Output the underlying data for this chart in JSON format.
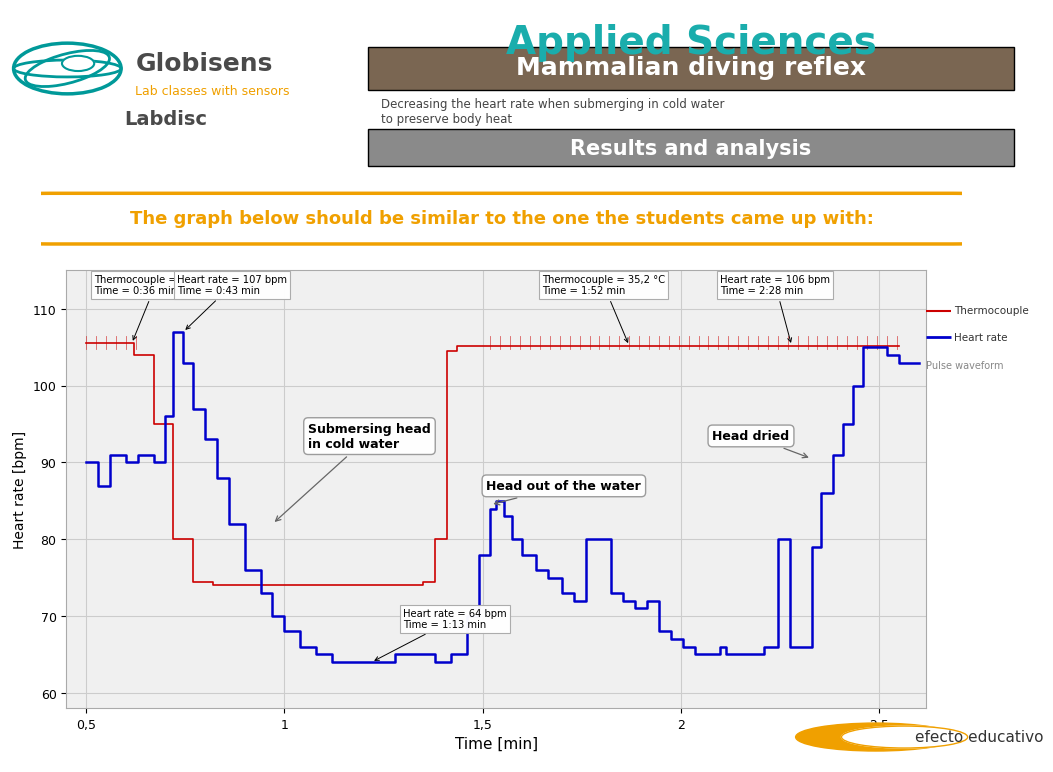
{
  "background_color": "#ffffff",
  "applied_sciences_text": "Applied Sciences",
  "applied_sciences_color": "#1AADAC",
  "subtitle_bar_color": "#7A6652",
  "subtitle_text": "Mammalian diving reflex",
  "desc_text": "Decreasing the heart rate when submerging in cold water\nto preserve body heat",
  "results_bar_color": "#8A8A8A",
  "results_text": "Results and analysis",
  "box_text": "The graph below should be similar to the one the students came up with:",
  "box_color": "#F0A000",
  "ylabel": "Heart rate [bpm]",
  "xlabel": "Time [min]",
  "ylim": [
    58,
    115
  ],
  "xlim": [
    0.45,
    2.62
  ],
  "yticks": [
    60,
    70,
    80,
    90,
    100,
    110
  ],
  "xticks": [
    0.5,
    1.0,
    1.5,
    2.0,
    2.5
  ],
  "xtick_labels": [
    "0,5",
    "1",
    "1,5",
    "2",
    "2,5"
  ],
  "grid_color": "#CCCCCC",
  "thermocouple_color": "#CC0000",
  "heartrate_color": "#0000CC",
  "chart_bg": "#F0F0F0",
  "annot1_text": "Thermocouple = 35,5 °C\nTime = 0:36 min",
  "annot2_text": "Heart rate = 107 bpm\nTime = 0:43 min",
  "annot3_text": "Thermocouple = 35,2 °C\nTime = 1:52 min",
  "annot4_text": "Heart rate = 106 bpm\nTime = 2:28 min",
  "annot5_text": "Heart rate = 64 bpm\nTime = 1:13 min",
  "submerge_text": "Submersing head\nin cold water",
  "headout_text": "Head out of the water",
  "headdried_text": "Head dried",
  "legend_thermo": "Thermocouple",
  "legend_heart": "Heart rate",
  "legend_pulse": "Pulse waveform",
  "globisens_color": "#4A4A4A",
  "teal_color": "#009999",
  "orange_color": "#F0A000"
}
